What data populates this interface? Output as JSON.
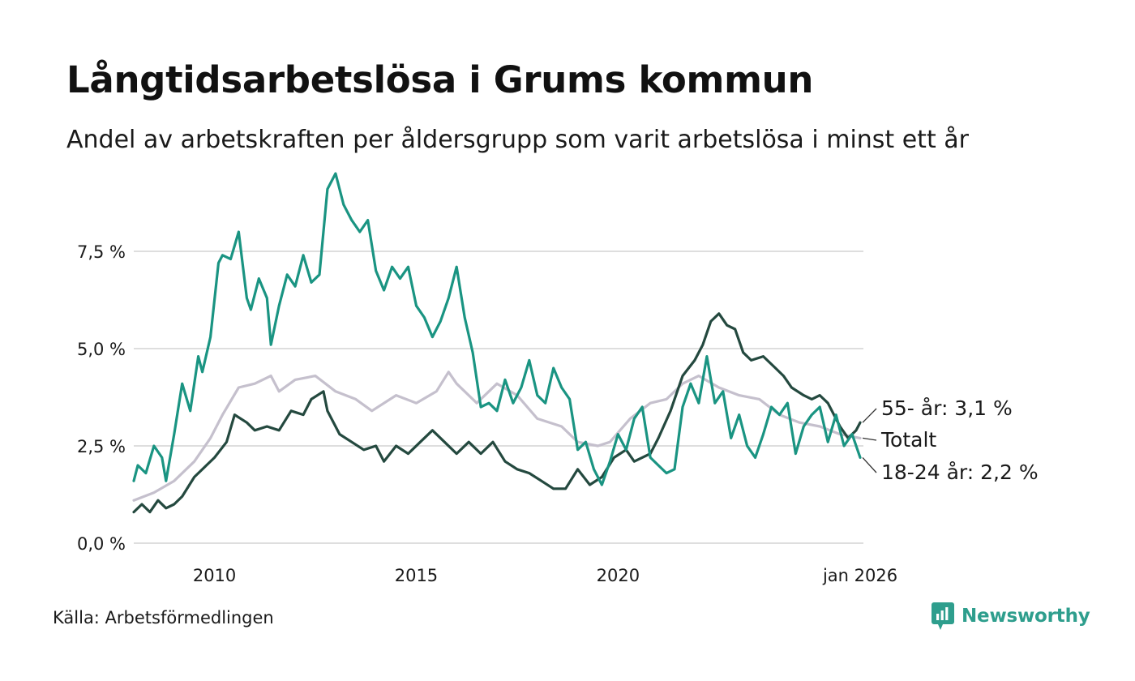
{
  "title": "Långtidsarbetslösa i Grums kommun",
  "subtitle": "Andel av arbetskraften per åldersgrupp som varit arbetslösa i minst ett år",
  "source": "Källa: Arbetsförmedlingen",
  "brand": "Newsworthy",
  "colors": {
    "youth": "#1a9482",
    "total": "#c5c0cd",
    "older": "#24493f",
    "grid": "#dedede",
    "brand": "#2e9e8d"
  },
  "chart_data": {
    "type": "line",
    "title": "Långtidsarbetslösa i Grums kommun",
    "xlabel": "",
    "ylabel": "",
    "xlim": [
      2008.0,
      2026.08
    ],
    "ylim": [
      0,
      9.5
    ],
    "grid": true,
    "x_ticks": [
      {
        "value": 2010,
        "label": "2010"
      },
      {
        "value": 2015,
        "label": "2015"
      },
      {
        "value": 2020,
        "label": "2020"
      },
      {
        "value": 2026.0,
        "label": "jan 2026"
      }
    ],
    "y_ticks": [
      {
        "value": 0,
        "label": "0,0 %"
      },
      {
        "value": 2.5,
        "label": "2,5 %"
      },
      {
        "value": 5,
        "label": "5,0 %"
      },
      {
        "value": 7.5,
        "label": "7,5 %"
      }
    ],
    "series": [
      {
        "name": "Totalt",
        "key": "total",
        "end_label": "Totalt",
        "points": [
          [
            2008.0,
            1.1
          ],
          [
            2008.5,
            1.3
          ],
          [
            2009.0,
            1.6
          ],
          [
            2009.5,
            2.1
          ],
          [
            2009.9,
            2.7
          ],
          [
            2010.2,
            3.3
          ],
          [
            2010.6,
            4.0
          ],
          [
            2011.0,
            4.1
          ],
          [
            2011.4,
            4.3
          ],
          [
            2011.6,
            3.9
          ],
          [
            2012.0,
            4.2
          ],
          [
            2012.5,
            4.3
          ],
          [
            2013.0,
            3.9
          ],
          [
            2013.5,
            3.7
          ],
          [
            2013.9,
            3.4
          ],
          [
            2014.5,
            3.8
          ],
          [
            2015.0,
            3.6
          ],
          [
            2015.5,
            3.9
          ],
          [
            2015.8,
            4.4
          ],
          [
            2016.0,
            4.1
          ],
          [
            2016.5,
            3.6
          ],
          [
            2017.0,
            4.1
          ],
          [
            2017.5,
            3.8
          ],
          [
            2018.0,
            3.2
          ],
          [
            2018.6,
            3.0
          ],
          [
            2019.0,
            2.6
          ],
          [
            2019.5,
            2.5
          ],
          [
            2019.8,
            2.6
          ],
          [
            2020.3,
            3.2
          ],
          [
            2020.8,
            3.6
          ],
          [
            2021.2,
            3.7
          ],
          [
            2021.6,
            4.1
          ],
          [
            2022.0,
            4.3
          ],
          [
            2022.5,
            4.0
          ],
          [
            2023.0,
            3.8
          ],
          [
            2023.5,
            3.7
          ],
          [
            2024.0,
            3.3
          ],
          [
            2024.5,
            3.1
          ],
          [
            2025.0,
            3.0
          ],
          [
            2025.5,
            2.8
          ],
          [
            2026.0,
            2.7
          ]
        ]
      },
      {
        "name": "55- år",
        "key": "older",
        "end_label": "55- år: 3,1 %",
        "points": [
          [
            2008.0,
            0.8
          ],
          [
            2008.2,
            1.0
          ],
          [
            2008.4,
            0.8
          ],
          [
            2008.6,
            1.1
          ],
          [
            2008.8,
            0.9
          ],
          [
            2009.0,
            1.0
          ],
          [
            2009.2,
            1.2
          ],
          [
            2009.5,
            1.7
          ],
          [
            2009.8,
            2.0
          ],
          [
            2010.0,
            2.2
          ],
          [
            2010.3,
            2.6
          ],
          [
            2010.5,
            3.3
          ],
          [
            2010.8,
            3.1
          ],
          [
            2011.0,
            2.9
          ],
          [
            2011.3,
            3.0
          ],
          [
            2011.6,
            2.9
          ],
          [
            2011.9,
            3.4
          ],
          [
            2012.2,
            3.3
          ],
          [
            2012.4,
            3.7
          ],
          [
            2012.7,
            3.9
          ],
          [
            2012.8,
            3.4
          ],
          [
            2013.1,
            2.8
          ],
          [
            2013.4,
            2.6
          ],
          [
            2013.7,
            2.4
          ],
          [
            2014.0,
            2.5
          ],
          [
            2014.2,
            2.1
          ],
          [
            2014.5,
            2.5
          ],
          [
            2014.8,
            2.3
          ],
          [
            2015.1,
            2.6
          ],
          [
            2015.4,
            2.9
          ],
          [
            2015.7,
            2.6
          ],
          [
            2016.0,
            2.3
          ],
          [
            2016.3,
            2.6
          ],
          [
            2016.6,
            2.3
          ],
          [
            2016.9,
            2.6
          ],
          [
            2017.2,
            2.1
          ],
          [
            2017.5,
            1.9
          ],
          [
            2017.8,
            1.8
          ],
          [
            2018.1,
            1.6
          ],
          [
            2018.4,
            1.4
          ],
          [
            2018.7,
            1.4
          ],
          [
            2019.0,
            1.9
          ],
          [
            2019.3,
            1.5
          ],
          [
            2019.6,
            1.7
          ],
          [
            2019.9,
            2.2
          ],
          [
            2020.2,
            2.4
          ],
          [
            2020.4,
            2.1
          ],
          [
            2020.8,
            2.3
          ],
          [
            2021.0,
            2.7
          ],
          [
            2021.3,
            3.4
          ],
          [
            2021.6,
            4.3
          ],
          [
            2021.9,
            4.7
          ],
          [
            2022.1,
            5.1
          ],
          [
            2022.3,
            5.7
          ],
          [
            2022.5,
            5.9
          ],
          [
            2022.7,
            5.6
          ],
          [
            2022.9,
            5.5
          ],
          [
            2023.1,
            4.9
          ],
          [
            2023.3,
            4.7
          ],
          [
            2023.6,
            4.8
          ],
          [
            2023.9,
            4.5
          ],
          [
            2024.1,
            4.3
          ],
          [
            2024.3,
            4.0
          ],
          [
            2024.6,
            3.8
          ],
          [
            2024.8,
            3.7
          ],
          [
            2025.0,
            3.8
          ],
          [
            2025.2,
            3.6
          ],
          [
            2025.5,
            3.0
          ],
          [
            2025.7,
            2.7
          ],
          [
            2025.9,
            2.9
          ],
          [
            2026.0,
            3.1
          ]
        ]
      },
      {
        "name": "18-24 år",
        "key": "youth",
        "end_label": "18-24 år: 2,2 %",
        "points": [
          [
            2008.0,
            1.6
          ],
          [
            2008.1,
            2.0
          ],
          [
            2008.3,
            1.8
          ],
          [
            2008.5,
            2.5
          ],
          [
            2008.7,
            2.2
          ],
          [
            2008.8,
            1.6
          ],
          [
            2009.0,
            2.8
          ],
          [
            2009.2,
            4.1
          ],
          [
            2009.4,
            3.4
          ],
          [
            2009.6,
            4.8
          ],
          [
            2009.7,
            4.4
          ],
          [
            2009.9,
            5.3
          ],
          [
            2010.1,
            7.2
          ],
          [
            2010.2,
            7.4
          ],
          [
            2010.4,
            7.3
          ],
          [
            2010.6,
            8.0
          ],
          [
            2010.8,
            6.3
          ],
          [
            2010.9,
            6.0
          ],
          [
            2011.1,
            6.8
          ],
          [
            2011.3,
            6.3
          ],
          [
            2011.4,
            5.1
          ],
          [
            2011.6,
            6.1
          ],
          [
            2011.8,
            6.9
          ],
          [
            2012.0,
            6.6
          ],
          [
            2012.2,
            7.4
          ],
          [
            2012.4,
            6.7
          ],
          [
            2012.6,
            6.9
          ],
          [
            2012.8,
            9.1
          ],
          [
            2013.0,
            9.5
          ],
          [
            2013.2,
            8.7
          ],
          [
            2013.4,
            8.3
          ],
          [
            2013.6,
            8.0
          ],
          [
            2013.8,
            8.3
          ],
          [
            2014.0,
            7.0
          ],
          [
            2014.2,
            6.5
          ],
          [
            2014.4,
            7.1
          ],
          [
            2014.6,
            6.8
          ],
          [
            2014.8,
            7.1
          ],
          [
            2015.0,
            6.1
          ],
          [
            2015.2,
            5.8
          ],
          [
            2015.4,
            5.3
          ],
          [
            2015.6,
            5.7
          ],
          [
            2015.8,
            6.3
          ],
          [
            2016.0,
            7.1
          ],
          [
            2016.2,
            5.8
          ],
          [
            2016.4,
            4.9
          ],
          [
            2016.6,
            3.5
          ],
          [
            2016.8,
            3.6
          ],
          [
            2017.0,
            3.4
          ],
          [
            2017.2,
            4.2
          ],
          [
            2017.4,
            3.6
          ],
          [
            2017.6,
            4.0
          ],
          [
            2017.8,
            4.7
          ],
          [
            2018.0,
            3.8
          ],
          [
            2018.2,
            3.6
          ],
          [
            2018.4,
            4.5
          ],
          [
            2018.6,
            4.0
          ],
          [
            2018.8,
            3.7
          ],
          [
            2019.0,
            2.4
          ],
          [
            2019.2,
            2.6
          ],
          [
            2019.4,
            1.9
          ],
          [
            2019.6,
            1.5
          ],
          [
            2019.8,
            2.1
          ],
          [
            2020.0,
            2.8
          ],
          [
            2020.2,
            2.4
          ],
          [
            2020.4,
            3.2
          ],
          [
            2020.6,
            3.5
          ],
          [
            2020.8,
            2.2
          ],
          [
            2021.0,
            2.0
          ],
          [
            2021.2,
            1.8
          ],
          [
            2021.4,
            1.9
          ],
          [
            2021.6,
            3.5
          ],
          [
            2021.8,
            4.1
          ],
          [
            2022.0,
            3.6
          ],
          [
            2022.2,
            4.8
          ],
          [
            2022.4,
            3.6
          ],
          [
            2022.6,
            3.9
          ],
          [
            2022.8,
            2.7
          ],
          [
            2023.0,
            3.3
          ],
          [
            2023.2,
            2.5
          ],
          [
            2023.4,
            2.2
          ],
          [
            2023.6,
            2.8
          ],
          [
            2023.8,
            3.5
          ],
          [
            2024.0,
            3.3
          ],
          [
            2024.2,
            3.6
          ],
          [
            2024.4,
            2.3
          ],
          [
            2024.6,
            3.0
          ],
          [
            2024.8,
            3.3
          ],
          [
            2025.0,
            3.5
          ],
          [
            2025.2,
            2.6
          ],
          [
            2025.4,
            3.3
          ],
          [
            2025.6,
            2.5
          ],
          [
            2025.8,
            2.8
          ],
          [
            2026.0,
            2.2
          ]
        ]
      }
    ]
  }
}
